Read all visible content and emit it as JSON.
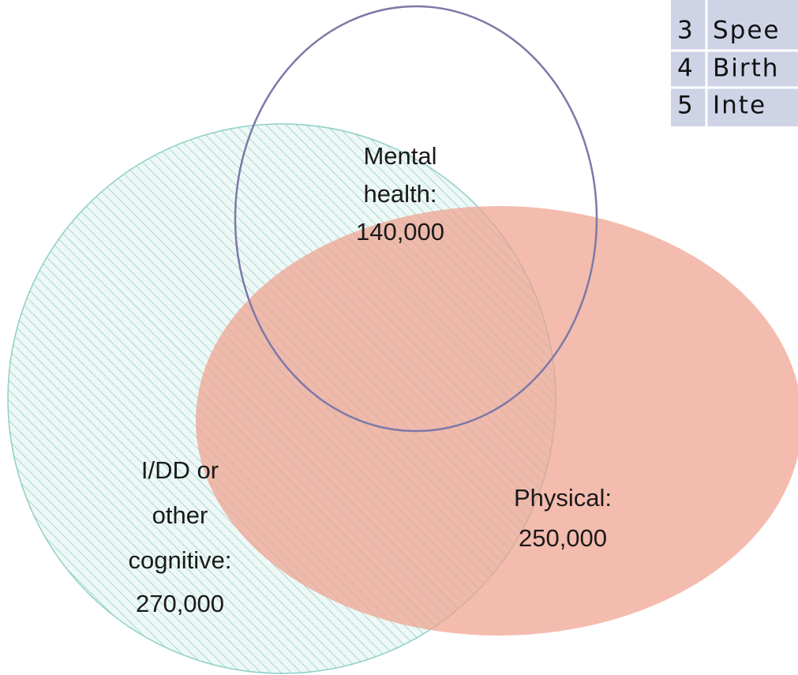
{
  "sets": [
    {
      "label_lines": [
        "Mental",
        "health:",
        "140,000"
      ]
    },
    {
      "label_lines": [
        "I/DD or",
        "other",
        "cognitive:",
        "270,000"
      ]
    },
    {
      "label_lines": [
        "Physical:",
        "250,000"
      ]
    }
  ],
  "table": {
    "rows": [
      [
        "3",
        "Spee"
      ],
      [
        "4",
        "Birth"
      ],
      [
        "5",
        "Inte"
      ]
    ]
  }
}
